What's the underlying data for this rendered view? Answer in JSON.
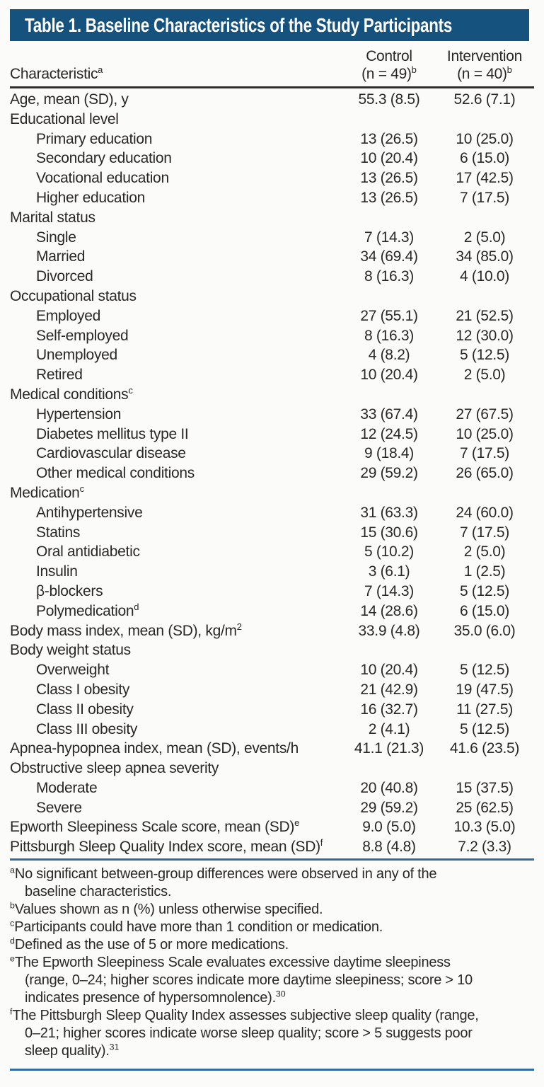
{
  "title": "Table 1. Baseline Characteristics of the Study Participants",
  "header": {
    "characteristic": "Characteristic",
    "characteristic_sup": "a",
    "control_line1": "Control",
    "control_line2": "(n = 49)",
    "control_sup": "b",
    "intervention_line1": "Intervention",
    "intervention_line2": "(n = 40)",
    "intervention_sup": "b"
  },
  "rows": [
    {
      "label": "Age, mean (SD), y",
      "control": "55.3 (8.5)",
      "intervention": "52.6 (7.1)",
      "indent": 0
    },
    {
      "label": "Educational level",
      "control": "",
      "intervention": "",
      "indent": 0
    },
    {
      "label": "Primary education",
      "control": "13 (26.5)",
      "intervention": "10 (25.0)",
      "indent": 1
    },
    {
      "label": "Secondary education",
      "control": "10 (20.4)",
      "intervention": "6 (15.0)",
      "indent": 1
    },
    {
      "label": "Vocational education",
      "control": "13 (26.5)",
      "intervention": "17 (42.5)",
      "indent": 1
    },
    {
      "label": "Higher education",
      "control": "13 (26.5)",
      "intervention": "7 (17.5)",
      "indent": 1
    },
    {
      "label": "Marital status",
      "control": "",
      "intervention": "",
      "indent": 0
    },
    {
      "label": "Single",
      "control": "7 (14.3)",
      "intervention": "2 (5.0)",
      "indent": 1
    },
    {
      "label": "Married",
      "control": "34 (69.4)",
      "intervention": "34 (85.0)",
      "indent": 1
    },
    {
      "label": "Divorced",
      "control": "8 (16.3)",
      "intervention": "4 (10.0)",
      "indent": 1
    },
    {
      "label": "Occupational status",
      "control": "",
      "intervention": "",
      "indent": 0
    },
    {
      "label": "Employed",
      "control": "27 (55.1)",
      "intervention": "21 (52.5)",
      "indent": 1
    },
    {
      "label": "Self-employed",
      "control": "8 (16.3)",
      "intervention": "12 (30.0)",
      "indent": 1
    },
    {
      "label": "Unemployed",
      "control": "4 (8.2)",
      "intervention": "5 (12.5)",
      "indent": 1
    },
    {
      "label": "Retired",
      "control": "10 (20.4)",
      "intervention": "2 (5.0)",
      "indent": 1
    },
    {
      "label": "Medical conditions",
      "sup": "c",
      "control": "",
      "intervention": "",
      "indent": 0
    },
    {
      "label": "Hypertension",
      "control": "33 (67.4)",
      "intervention": "27 (67.5)",
      "indent": 1
    },
    {
      "label": "Diabetes mellitus type II",
      "control": "12 (24.5)",
      "intervention": "10 (25.0)",
      "indent": 1
    },
    {
      "label": "Cardiovascular disease",
      "control": "9 (18.4)",
      "intervention": "7 (17.5)",
      "indent": 1
    },
    {
      "label": "Other medical conditions",
      "control": "29 (59.2)",
      "intervention": "26 (65.0)",
      "indent": 1
    },
    {
      "label": "Medication",
      "sup": "c",
      "control": "",
      "intervention": "",
      "indent": 0
    },
    {
      "label": "Antihypertensive",
      "control": "31 (63.3)",
      "intervention": "24 (60.0)",
      "indent": 1
    },
    {
      "label": "Statins",
      "control": "15 (30.6)",
      "intervention": "7 (17.5)",
      "indent": 1
    },
    {
      "label": "Oral antidiabetic",
      "control": "5 (10.2)",
      "intervention": "2 (5.0)",
      "indent": 1
    },
    {
      "label": "Insulin",
      "control": "3 (6.1)",
      "intervention": "1 (2.5)",
      "indent": 1
    },
    {
      "label": "β-blockers",
      "control": "7 (14.3)",
      "intervention": "5 (12.5)",
      "indent": 1
    },
    {
      "label": "Polymedication",
      "sup": "d",
      "control": "14 (28.6)",
      "intervention": "6 (15.0)",
      "indent": 1
    },
    {
      "label": "Body mass index, mean (SD), kg/m",
      "sup": "2",
      "control": "33.9 (4.8)",
      "intervention": "35.0 (6.0)",
      "indent": 0
    },
    {
      "label": "Body weight status",
      "control": "",
      "intervention": "",
      "indent": 0
    },
    {
      "label": "Overweight",
      "control": "10 (20.4)",
      "intervention": "5 (12.5)",
      "indent": 1
    },
    {
      "label": "Class I obesity",
      "control": "21 (42.9)",
      "intervention": "19 (47.5)",
      "indent": 1
    },
    {
      "label": "Class II obesity",
      "control": "16 (32.7)",
      "intervention": "11 (27.5)",
      "indent": 1
    },
    {
      "label": "Class III obesity",
      "control": "2 (4.1)",
      "intervention": "5 (12.5)",
      "indent": 1
    },
    {
      "label": "Apnea-hypopnea index, mean (SD), events/h",
      "control": "41.1 (21.3)",
      "intervention": "41.6 (23.5)",
      "indent": 0
    },
    {
      "label": "Obstructive sleep apnea severity",
      "control": "",
      "intervention": "",
      "indent": 0
    },
    {
      "label": "Moderate",
      "control": "20 (40.8)",
      "intervention": "15 (37.5)",
      "indent": 1
    },
    {
      "label": "Severe",
      "control": "29 (59.2)",
      "intervention": "25 (62.5)",
      "indent": 1
    },
    {
      "label": "Epworth Sleepiness Scale score, mean (SD)",
      "sup": "e",
      "control": "9.0 (5.0)",
      "intervention": "10.3 (5.0)",
      "indent": 0
    },
    {
      "label": "Pittsburgh Sleep Quality Index score, mean (SD)",
      "sup": "f",
      "control": "8.8 (4.8)",
      "intervention": "7.2 (3.3)",
      "indent": 0
    }
  ],
  "footnotes": [
    {
      "marker": "a",
      "lines": [
        "No significant between-group differences were observed in any of the",
        "baseline characteristics."
      ]
    },
    {
      "marker": "b",
      "lines": [
        "Values shown as n (%) unless otherwise specified."
      ]
    },
    {
      "marker": "c",
      "lines": [
        "Participants could have more than 1 condition or medication."
      ]
    },
    {
      "marker": "d",
      "lines": [
        "Defined as the use of 5 or more medications."
      ]
    },
    {
      "marker": "e",
      "lines": [
        "The Epworth Sleepiness Scale evaluates excessive daytime sleepiness",
        "(range, 0–24; higher scores indicate more daytime sleepiness; score > 10",
        "indicates presence of hypersomnolence)."
      ],
      "ref": "30"
    },
    {
      "marker": "f",
      "lines": [
        "The Pittsburgh Sleep Quality Index assesses subjective sleep quality (range,",
        "0–21; higher scores indicate worse sleep quality; score > 5 suggests poor",
        "sleep quality)."
      ],
      "ref": "31"
    }
  ],
  "colors": {
    "title_bar_background": "#15527E",
    "title_text": "#FFFFFF",
    "header_rule": "#2F2D2B",
    "blue_rule": "#2E6CA4",
    "body_text": "#2A2826",
    "page_background": "#FBFBF9"
  }
}
